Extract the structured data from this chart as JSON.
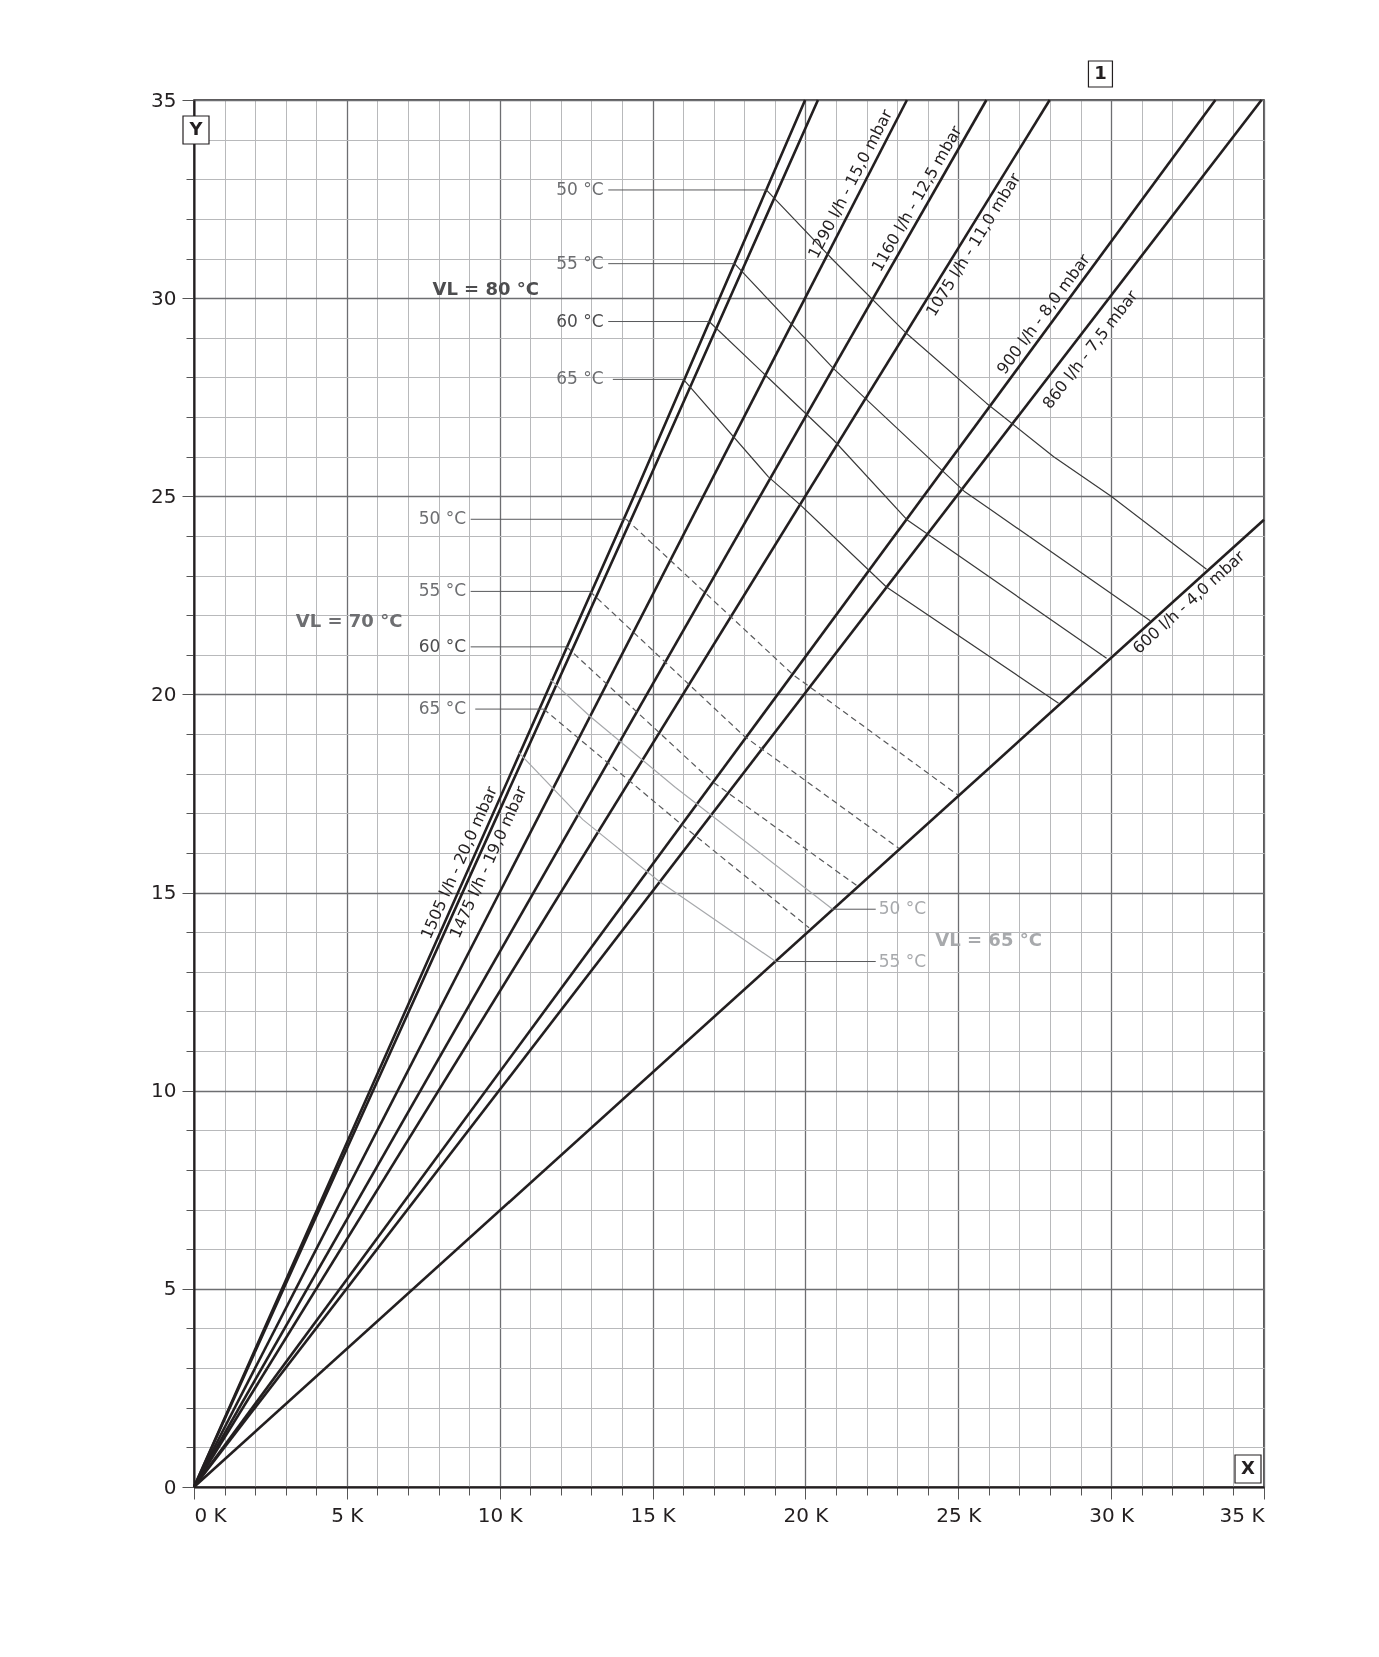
{
  "chart_data": {
    "type": "line",
    "xlabel": "X",
    "ylabel": "Y",
    "xlim": [
      0,
      35
    ],
    "ylim": [
      0,
      35
    ],
    "xticks": [
      {
        "value": 0,
        "label": "0 K"
      },
      {
        "value": 1,
        "label": null
      },
      {
        "value": 2,
        "label": null
      },
      {
        "value": 3,
        "label": null
      },
      {
        "value": 4,
        "label": null
      },
      {
        "value": 5,
        "label": "5 K"
      },
      {
        "value": 6,
        "label": null
      },
      {
        "value": 7,
        "label": null
      },
      {
        "value": 8,
        "label": null
      },
      {
        "value": 9,
        "label": null
      },
      {
        "value": 10,
        "label": "10 K"
      },
      {
        "value": 11,
        "label": null
      },
      {
        "value": 12,
        "label": null
      },
      {
        "value": 13,
        "label": null
      },
      {
        "value": 14,
        "label": null
      },
      {
        "value": 15,
        "label": "15 K"
      },
      {
        "value": 16,
        "label": null
      },
      {
        "value": 17,
        "label": null
      },
      {
        "value": 18,
        "label": null
      },
      {
        "value": 19,
        "label": null
      },
      {
        "value": 20,
        "label": "20 K"
      },
      {
        "value": 21,
        "label": null
      },
      {
        "value": 22,
        "label": null
      },
      {
        "value": 23,
        "label": null
      },
      {
        "value": 24,
        "label": null
      },
      {
        "value": 25,
        "label": "25 K"
      },
      {
        "value": 26,
        "label": null
      },
      {
        "value": 27,
        "label": null
      },
      {
        "value": 28,
        "label": null
      },
      {
        "value": 29,
        "label": null
      },
      {
        "value": 30,
        "label": "30 K"
      },
      {
        "value": 31,
        "label": null
      },
      {
        "value": 32,
        "label": null
      },
      {
        "value": 33,
        "label": null
      },
      {
        "value": 34,
        "label": null
      },
      {
        "value": 35,
        "label": "35 K"
      }
    ],
    "yticks": [
      0,
      {
        "value": 1,
        "label": null
      },
      {
        "value": 2,
        "label": null
      },
      {
        "value": 3,
        "label": null
      },
      {
        "value": 4,
        "label": null
      },
      5,
      {
        "value": 6,
        "label": null
      },
      {
        "value": 7,
        "label": null
      },
      {
        "value": 8,
        "label": null
      },
      {
        "value": 9,
        "label": null
      },
      10,
      {
        "value": 11,
        "label": null
      },
      {
        "value": 12,
        "label": null
      },
      {
        "value": 13,
        "label": null
      },
      {
        "value": 14,
        "label": null
      },
      15,
      {
        "value": 16,
        "label": null
      },
      {
        "value": 17,
        "label": null
      },
      {
        "value": 18,
        "label": null
      },
      {
        "value": 19,
        "label": null
      },
      20,
      {
        "value": 21,
        "label": null
      },
      {
        "value": 22,
        "label": null
      },
      {
        "value": 23,
        "label": null
      },
      {
        "value": 24,
        "label": null
      },
      25,
      {
        "value": 26,
        "label": null
      },
      {
        "value": 27,
        "label": null
      },
      {
        "value": 28,
        "label": null
      },
      {
        "value": 29,
        "label": null
      },
      30,
      {
        "value": 31,
        "label": null
      },
      {
        "value": 32,
        "label": null
      },
      {
        "value": 33,
        "label": null
      },
      {
        "value": 34,
        "label": null
      },
      35
    ],
    "grid": true,
    "line_style": "solid",
    "series": [
      {
        "color": "#231f20",
        "x": [
          0,
          14.39,
          19.99
        ],
        "values": [
          0,
          25,
          35
        ]
      },
      {
        "color": "#231f20",
        "x": [
          0,
          14.64,
          20.41
        ],
        "values": [
          0,
          25,
          35
        ]
      },
      {
        "color": "#231f20",
        "x": [
          0,
          23.32
        ],
        "values": [
          0,
          35
        ]
      },
      {
        "color": "#231f20",
        "x": [
          0,
          25.92
        ],
        "values": [
          0,
          35
        ]
      },
      {
        "color": "#231f20",
        "x": [
          0,
          27.99
        ],
        "values": [
          0,
          35
        ]
      },
      {
        "color": "#231f20",
        "x": [
          0,
          33.41
        ],
        "values": [
          0,
          35
        ]
      },
      {
        "color": "#231f20",
        "x": [
          0,
          34.92
        ],
        "values": [
          0,
          35
        ]
      },
      {
        "color": "#231f20",
        "x": [
          0,
          35
        ],
        "values": [
          0,
          24.41
        ]
      },
      {
        "color": "#3a3a3a",
        "x": [
          18.72,
          20.92,
          23.32,
          25.92,
          28.12,
          30.0,
          33.12
        ],
        "values": [
          32.73,
          30.95,
          29.1,
          27.35,
          26.0,
          25.0,
          23.16
        ]
      },
      {
        "color": "#3a3a3a",
        "x": [
          17.68,
          20.92,
          25.19,
          31.28
        ],
        "values": [
          30.87,
          28.22,
          25.13,
          21.86
        ]
      },
      {
        "color": "#3a3a3a",
        "x": [
          16.85,
          20.92,
          23.32,
          29.85
        ],
        "values": [
          29.41,
          26.42,
          24.41,
          20.91
        ]
      },
      {
        "color": "#3a3a3a",
        "x": [
          16.01,
          18.79,
          19.85,
          22.65,
          28.28
        ],
        "values": [
          27.95,
          25.49,
          24.77,
          22.71,
          19.78
        ]
      },
      {
        "color": "#58595b",
        "line_style": "dashed",
        "x": [
          14.14,
          19.59,
          24.99
        ],
        "values": [
          24.42,
          20.5,
          17.46
        ]
      },
      {
        "color": "#58595b",
        "line_style": "dashed",
        "x": [
          12.95,
          17.99,
          23.05
        ],
        "values": [
          22.6,
          18.95,
          16.12
        ]
      },
      {
        "color": "#58595b",
        "line_style": "dashed",
        "x": [
          12.19,
          16.92,
          21.69
        ],
        "values": [
          21.2,
          17.82,
          15.17
        ]
      },
      {
        "color": "#58595b",
        "line_style": "dashed",
        "x": [
          11.44,
          15.99,
          20.12
        ],
        "values": [
          19.63,
          16.69,
          14.11
        ]
      },
      {
        "color": "#a7a9ac",
        "x": [
          11.65,
          12.95,
          15.75,
          20.89
        ],
        "values": [
          20.38,
          19.45,
          17.65,
          14.58
        ]
      },
      {
        "color": "#a7a9ac",
        "x": [
          10.6,
          12.72,
          15.19,
          19.03
        ],
        "values": [
          18.55,
          16.84,
          15.3,
          13.26
        ]
      }
    ],
    "annotations": [
      "1",
      "VL = 80 °C",
      "VL = 70 °C",
      "VL = 65 °C",
      {
        "text": "50 °C",
        "x": 18.72,
        "y": 32.73
      },
      {
        "text": "55 °C",
        "x": 17.68,
        "y": 30.87
      },
      {
        "text": "60 °C",
        "x": 16.85,
        "y": 29.41
      },
      "65 °C",
      {
        "text": "50 °C",
        "x": 14.14,
        "y": 24.42
      },
      {
        "text": "55 °C",
        "x": 12.95,
        "y": 22.6
      },
      {
        "text": "60 °C",
        "x": 12.19,
        "y": 21.2
      },
      "65 °C",
      {
        "text": "50 °C",
        "x": 20.89,
        "y": 14.58
      },
      {
        "text": "55 °C",
        "x": 19.03,
        "y": 13.26
      },
      {
        "text": "1505 l/h - 20,0 mbar",
        "x": 9.0,
        "y": 15.64
      },
      {
        "text": "1475 l/h - 19,0 mbar",
        "x": 9.3,
        "y": 15.88
      },
      {
        "text": "1290 l/h - 15,0 mbar",
        "x": 21.79,
        "y": 32.75
      },
      {
        "text": "1160 l/h - 12,5 mbar",
        "x": 23.96,
        "y": 32.37
      },
      {
        "text": "1075 l/h - 11,0 mbar",
        "x": 25.19,
        "y": 31.49
      },
      {
        "text": "900 l/h - 8,0 mbar",
        "x": 28.08,
        "y": 29.43
      },
      {
        "text": "860 l/h - 7,5 mbar",
        "x": 29.03,
        "y": 28.87
      },
      {
        "text": "600 l/h - 4,0 mbar",
        "x": 32.3,
        "y": 22.53
      }
    ]
  }
}
